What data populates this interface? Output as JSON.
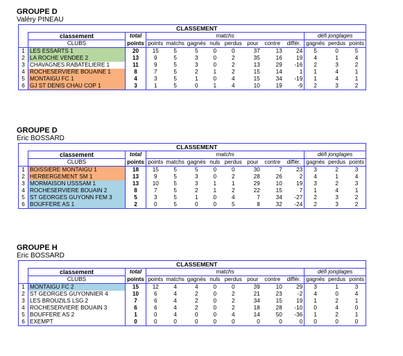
{
  "groups": [
    {
      "title": "GROUPE D",
      "coach": "Valéry PINEAU",
      "headers": {
        "classement": "CLASSEMENT",
        "classement_small": "classement",
        "clubs": "CLUBS",
        "total": "total",
        "points": "points",
        "matchs_group": "matchs",
        "defi_group": "défi jonglages",
        "cols": [
          "points",
          "matchs",
          "gagnés",
          "nuls",
          "perdus",
          "pour",
          "contre",
          "différ.",
          "gagnés",
          "perdus",
          "points"
        ]
      },
      "rows": [
        {
          "rank": "1",
          "club": "LES ESSARTS 1",
          "total": "20",
          "vals": [
            "15",
            "5",
            "5",
            "0",
            "0",
            "37",
            "13",
            "24",
            "5",
            "0",
            "5"
          ],
          "color": "green"
        },
        {
          "rank": "2",
          "club": "LA ROCHE VENDEE 2",
          "total": "13",
          "vals": [
            "9",
            "5",
            "3",
            "0",
            "2",
            "35",
            "16",
            "19",
            "4",
            "1",
            "4"
          ],
          "color": "green"
        },
        {
          "rank": "3",
          "club": "CHAVAGNES RABATELIERE 1",
          "total": "11",
          "vals": [
            "9",
            "5",
            "3",
            "0",
            "2",
            "13",
            "29",
            "-16",
            "2",
            "3",
            "2"
          ],
          "color": "none"
        },
        {
          "rank": "4",
          "club": "ROCHESERVIERE BOUAINE 1",
          "total": "8",
          "vals": [
            "7",
            "5",
            "2",
            "1",
            "2",
            "15",
            "14",
            "1",
            "1",
            "4",
            "1"
          ],
          "color": "orange"
        },
        {
          "rank": "5",
          "club": "MONTAIGU FC 1",
          "total": "4",
          "vals": [
            "3",
            "5",
            "1",
            "0",
            "4",
            "15",
            "34",
            "-19",
            "1",
            "4",
            "1"
          ],
          "color": "orange"
        },
        {
          "rank": "6",
          "club": "GJ ST DENIS CHAU COP 1",
          "total": "3",
          "vals": [
            "1",
            "5",
            "0",
            "1",
            "4",
            "10",
            "19",
            "-9",
            "2",
            "3",
            "2"
          ],
          "color": "orange"
        }
      ]
    },
    {
      "title": "GROUPE D",
      "coach": "Eric BOSSARD",
      "headers": {
        "classement": "CLASSEMENT",
        "classement_small": "classement",
        "clubs": "CLUBS",
        "total": "total",
        "points": "points",
        "matchs_group": "matchs",
        "defi_group": "défi jonglages",
        "cols": [
          "points",
          "matchs",
          "gagnés",
          "nuls",
          "perdus",
          "pour",
          "contre",
          "différ.",
          "gagnés",
          "perdus",
          "points"
        ]
      },
      "rows": [
        {
          "rank": "1",
          "club": "BOISSIERE MONTAIGU 1",
          "total": "18",
          "vals": [
            "15",
            "5",
            "5",
            "0",
            "0",
            "30",
            "7",
            "23",
            "3",
            "2",
            "3"
          ],
          "color": "orange"
        },
        {
          "rank": "2",
          "club": "HERBERGEMENT SM 1",
          "total": "13",
          "vals": [
            "9",
            "5",
            "3",
            "0",
            "2",
            "28",
            "26",
            "2",
            "4",
            "1",
            "4"
          ],
          "color": "orange"
        },
        {
          "rank": "3",
          "club": "MORMAISON USSSAM 1",
          "total": "13",
          "vals": [
            "10",
            "5",
            "3",
            "1",
            "1",
            "29",
            "10",
            "19",
            "3",
            "2",
            "3"
          ],
          "color": "blue"
        },
        {
          "rank": "4",
          "club": "ROCHESERVIERE BOUAIN 2",
          "total": "8",
          "vals": [
            "7",
            "5",
            "2",
            "1",
            "2",
            "22",
            "15",
            "7",
            "1",
            "4",
            "1"
          ],
          "color": "blue"
        },
        {
          "rank": "5",
          "club": "ST GEORGES GUYONN FEM 3",
          "total": "5",
          "vals": [
            "3",
            "5",
            "1",
            "0",
            "4",
            "7",
            "34",
            "-27",
            "2",
            "3",
            "2"
          ],
          "color": "blue"
        },
        {
          "rank": "6",
          "club": "BOUFFERE AS 1",
          "total": "2",
          "vals": [
            "0",
            "5",
            "0",
            "0",
            "5",
            "8",
            "32",
            "-24",
            "2",
            "3",
            "2"
          ],
          "color": "blue"
        }
      ]
    },
    {
      "title": "GROUPE H",
      "coach": "Eric BOSSARD",
      "headers": {
        "classement": "CLASSEMENT",
        "classement_small": "classement",
        "clubs": "CLUBS",
        "total": "total",
        "points": "points",
        "matchs_group": "matchs",
        "defi_group": "défi jonglages",
        "cols": [
          "points",
          "matchs",
          "gagnés",
          "nuls",
          "perdus",
          "pour",
          "contre",
          "différ.",
          "gagnés",
          "perdus",
          "points"
        ]
      },
      "rows": [
        {
          "rank": "1",
          "club": "MONTAIGU FC 2",
          "total": "15",
          "vals": [
            "12",
            "4",
            "4",
            "0",
            "0",
            "39",
            "10",
            "29",
            "3",
            "1",
            "3"
          ],
          "color": "blue"
        },
        {
          "rank": "2",
          "club": "ST GEORGES GUYONNIER 4",
          "total": "10",
          "vals": [
            "6",
            "4",
            "2",
            "0",
            "2",
            "21",
            "23",
            "-2",
            "4",
            "0",
            "4"
          ],
          "color": "none"
        },
        {
          "rank": "3",
          "club": "LES BROUZILS LSG 2",
          "total": "7",
          "vals": [
            "6",
            "4",
            "2",
            "0",
            "2",
            "34",
            "15",
            "19",
            "1",
            "2",
            "1"
          ],
          "color": "none"
        },
        {
          "rank": "4",
          "club": "ROCHESERVIERE BOUAIN 3",
          "total": "6",
          "vals": [
            "6",
            "4",
            "2",
            "0",
            "2",
            "18",
            "28",
            "-10",
            "0",
            "4",
            "0"
          ],
          "color": "none"
        },
        {
          "rank": "5",
          "club": "BOUFFERE AS 2",
          "total": "1",
          "vals": [
            "0",
            "4",
            "0",
            "0",
            "4",
            "14",
            "50",
            "-36",
            "1",
            "2",
            "1"
          ],
          "color": "none"
        },
        {
          "rank": "6",
          "club": "EXEMPT",
          "total": "0",
          "vals": [
            "0",
            "0",
            "0",
            "0",
            "0",
            "0",
            "0",
            "0",
            "0",
            "0",
            "0"
          ],
          "color": "none"
        }
      ]
    }
  ]
}
